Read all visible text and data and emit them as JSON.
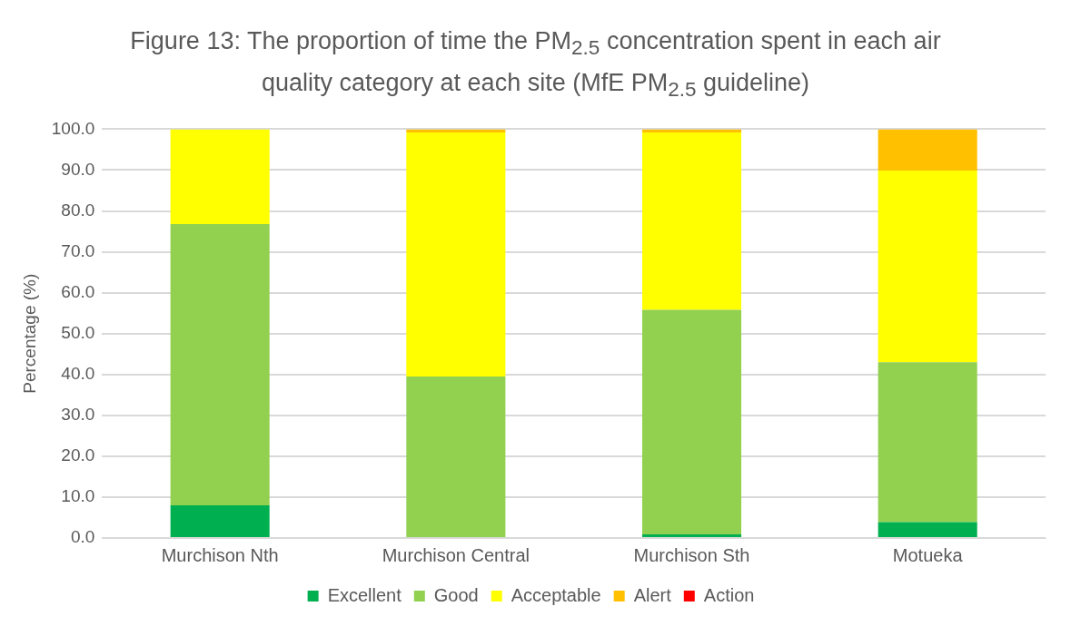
{
  "chart_data": {
    "type": "bar",
    "title": "Figure 13: The proportion of time the PM$_{2.5}$ concentration spent in each air quality category at each site (MfE PM$_{2.5}$ guideline)",
    "ylabel": "Percentage (%)",
    "categories": [
      "Murchison Nth",
      "Murchison Central",
      "Murchison Sth",
      "Motueka"
    ],
    "series": [
      {
        "name": "Excellent",
        "color": "#00b050",
        "values": [
          8.0,
          0,
          0.9,
          3.9
        ]
      },
      {
        "name": "Good",
        "color": "#92d050",
        "values": [
          68.8,
          39.5,
          54.9,
          39.1
        ]
      },
      {
        "name": "Acceptable",
        "color": "#ffff00",
        "values": [
          23.2,
          59.7,
          43.4,
          46.9
        ]
      },
      {
        "name": "Alert",
        "color": "#ffc000",
        "values": [
          0,
          0.8,
          0.8,
          10.1
        ]
      },
      {
        "name": "Action",
        "color": "#ff0000",
        "values": [
          0,
          0,
          0,
          0
        ]
      }
    ],
    "stacked": true,
    "ylim": [
      0,
      100
    ],
    "yticks": [
      {
        "value": 0,
        "label": "0.0"
      },
      {
        "value": 10,
        "label": "10.0"
      },
      {
        "value": 20,
        "label": "20.0"
      },
      {
        "value": 30,
        "label": "30.0"
      },
      {
        "value": 40,
        "label": "40.0"
      },
      {
        "value": 50,
        "label": "50.0"
      },
      {
        "value": 60,
        "label": "60.0"
      },
      {
        "value": 70,
        "label": "70.0"
      },
      {
        "value": 80,
        "label": "80.0"
      },
      {
        "value": 90,
        "label": "90.0"
      },
      {
        "value": 100,
        "label": "100.0"
      }
    ],
    "grid": "y",
    "legend": "bottom"
  }
}
